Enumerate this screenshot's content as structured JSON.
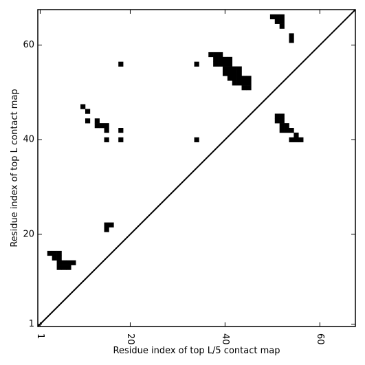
{
  "chart_data": {
    "type": "heatmap",
    "title": "",
    "xlabel": "Residue index of top L/5 contact map",
    "ylabel": "Residue index of top L contact map",
    "xlim": [
      0.5,
      67.5
    ],
    "ylim": [
      0.5,
      67.5
    ],
    "x_ticks": [
      1,
      20,
      40,
      60
    ],
    "y_ticks": [
      1,
      20,
      40,
      60
    ],
    "x_tick_rotation": -90,
    "grid": false,
    "legend": "none",
    "colors": {
      "cell": "#000000",
      "background": "#ffffff",
      "axes": "#000000"
    },
    "diagonal_line": {
      "from": [
        0.5,
        0.5
      ],
      "to": [
        67.5,
        67.5
      ]
    },
    "cells": [
      [
        3,
        16
      ],
      [
        4,
        16
      ],
      [
        5,
        16
      ],
      [
        4,
        15
      ],
      [
        5,
        15
      ],
      [
        5,
        14
      ],
      [
        6,
        14
      ],
      [
        7,
        14
      ],
      [
        8,
        14
      ],
      [
        5,
        13
      ],
      [
        6,
        13
      ],
      [
        7,
        13
      ],
      [
        15,
        22
      ],
      [
        16,
        22
      ],
      [
        15,
        21
      ],
      [
        10,
        47
      ],
      [
        11,
        46
      ],
      [
        11,
        44
      ],
      [
        13,
        44
      ],
      [
        13,
        43
      ],
      [
        14,
        43
      ],
      [
        15,
        43
      ],
      [
        15,
        42
      ],
      [
        15,
        40
      ],
      [
        18,
        40
      ],
      [
        18,
        42
      ],
      [
        34,
        40
      ],
      [
        18,
        56
      ],
      [
        34,
        56
      ],
      [
        37,
        58
      ],
      [
        38,
        58
      ],
      [
        39,
        58
      ],
      [
        38,
        57
      ],
      [
        39,
        57
      ],
      [
        40,
        57
      ],
      [
        41,
        57
      ],
      [
        38,
        56
      ],
      [
        39,
        56
      ],
      [
        40,
        56
      ],
      [
        41,
        56
      ],
      [
        40,
        55
      ],
      [
        41,
        55
      ],
      [
        42,
        55
      ],
      [
        43,
        55
      ],
      [
        40,
        54
      ],
      [
        41,
        54
      ],
      [
        42,
        54
      ],
      [
        43,
        54
      ],
      [
        41,
        53
      ],
      [
        42,
        53
      ],
      [
        43,
        53
      ],
      [
        44,
        53
      ],
      [
        45,
        53
      ],
      [
        42,
        52
      ],
      [
        43,
        52
      ],
      [
        44,
        52
      ],
      [
        45,
        52
      ],
      [
        44,
        51
      ],
      [
        45,
        51
      ],
      [
        50,
        66
      ],
      [
        51,
        66
      ],
      [
        52,
        66
      ],
      [
        51,
        65
      ],
      [
        52,
        65
      ],
      [
        52,
        64
      ],
      [
        54,
        62
      ],
      [
        54,
        61
      ],
      [
        51,
        45
      ],
      [
        52,
        45
      ],
      [
        51,
        44
      ],
      [
        52,
        44
      ],
      [
        52,
        43
      ],
      [
        53,
        43
      ],
      [
        52,
        42
      ],
      [
        53,
        42
      ],
      [
        54,
        42
      ],
      [
        55,
        41
      ],
      [
        54,
        40
      ],
      [
        55,
        40
      ],
      [
        56,
        40
      ]
    ]
  }
}
